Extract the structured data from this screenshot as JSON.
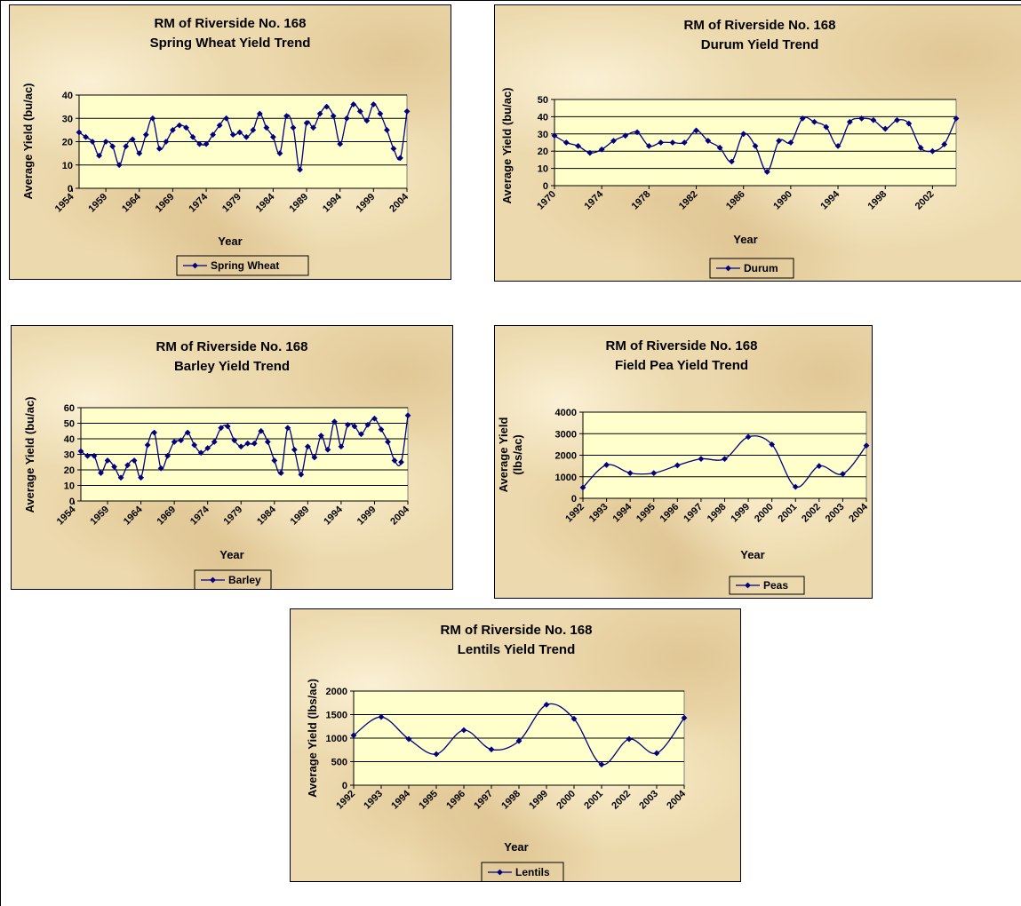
{
  "chart_data": [
    {
      "id": "wheat",
      "type": "line",
      "title": "RM of Riverside No. 168",
      "subtitle": "Spring Wheat Yield Trend",
      "xlabel": "Year",
      "ylabel": "Average Yield  (bu/ac)",
      "ylabel_lines": [
        "Average Yield  (bu/ac)"
      ],
      "ylim": [
        0,
        40
      ],
      "yticks": [
        0,
        10,
        20,
        30,
        40
      ],
      "xtick_labels": [
        "1954",
        "1959",
        "1964",
        "1969",
        "1974",
        "1979",
        "1984",
        "1989",
        "1994",
        "1999",
        "2004"
      ],
      "x_start": 1955,
      "grid": true,
      "legend_position": "bottom",
      "series": [
        {
          "name": "Spring Wheat",
          "x": [
            1955,
            1956,
            1957,
            1958,
            1959,
            1960,
            1961,
            1962,
            1963,
            1964,
            1965,
            1966,
            1967,
            1968,
            1969,
            1970,
            1971,
            1972,
            1973,
            1974,
            1975,
            1976,
            1977,
            1978,
            1979,
            1980,
            1981,
            1982,
            1983,
            1984,
            1985,
            1986,
            1987,
            1988,
            1989,
            1990,
            1991,
            1992,
            1993,
            1994,
            1995,
            1996,
            1997,
            1998,
            1999,
            2000,
            2001,
            2002,
            2003,
            2004
          ],
          "values": [
            24,
            22,
            20,
            14,
            20,
            18,
            10,
            18,
            21,
            15,
            23,
            30,
            17,
            20,
            25,
            27,
            26,
            22,
            19,
            19,
            23,
            27,
            30,
            23,
            24,
            22,
            25,
            32,
            26,
            22,
            15,
            31,
            26,
            8,
            28,
            26,
            32,
            35,
            31,
            19,
            30,
            36,
            33,
            29,
            36,
            32,
            25,
            17,
            13,
            33
          ]
        }
      ]
    },
    {
      "id": "durum",
      "type": "line",
      "title": "RM of Riverside No. 168",
      "subtitle": "Durum Yield Trend",
      "xlabel": "Year",
      "ylabel": "Average Yield (bu/ac)",
      "ylabel_lines": [
        "Average Yield (bu/ac)"
      ],
      "ylim": [
        0,
        50
      ],
      "yticks": [
        0,
        10,
        20,
        30,
        40,
        50
      ],
      "xtick_labels": [
        "1970",
        "1974",
        "1978",
        "1982",
        "1986",
        "1990",
        "1994",
        "1998",
        "2002"
      ],
      "x_start": 1970,
      "grid": true,
      "legend_position": "bottom",
      "series": [
        {
          "name": "Durum",
          "x": [
            1970,
            1971,
            1972,
            1973,
            1974,
            1975,
            1976,
            1977,
            1978,
            1979,
            1980,
            1981,
            1982,
            1983,
            1984,
            1985,
            1986,
            1987,
            1988,
            1989,
            1990,
            1991,
            1992,
            1993,
            1994,
            1995,
            1996,
            1997,
            1998,
            1999,
            2000,
            2001,
            2002,
            2003,
            2004
          ],
          "values": [
            29,
            25,
            23,
            19,
            21,
            26,
            29,
            31,
            23,
            25,
            25,
            25,
            32,
            26,
            22,
            14,
            30,
            23,
            8,
            26,
            25,
            39,
            37,
            34,
            23,
            37,
            39,
            38,
            33,
            38,
            36,
            22,
            20,
            24,
            39
          ]
        }
      ]
    },
    {
      "id": "barley",
      "type": "line",
      "title": "RM of Riverside No. 168",
      "subtitle": "Barley Yield Trend",
      "xlabel": "Year",
      "ylabel": "Average Yield  (bu/ac)",
      "ylabel_lines": [
        "Average Yield  (bu/ac)"
      ],
      "ylim": [
        0,
        60
      ],
      "yticks": [
        0,
        10,
        20,
        30,
        40,
        50,
        60
      ],
      "xtick_labels": [
        "1954",
        "1959",
        "1964",
        "1969",
        "1974",
        "1979",
        "1984",
        "1989",
        "1994",
        "1999",
        "2004"
      ],
      "x_start": 1955,
      "grid": true,
      "legend_position": "bottom",
      "series": [
        {
          "name": "Barley",
          "x": [
            1955,
            1956,
            1957,
            1958,
            1959,
            1960,
            1961,
            1962,
            1963,
            1964,
            1965,
            1966,
            1967,
            1968,
            1969,
            1970,
            1971,
            1972,
            1973,
            1974,
            1975,
            1976,
            1977,
            1978,
            1979,
            1980,
            1981,
            1982,
            1983,
            1984,
            1985,
            1986,
            1987,
            1988,
            1989,
            1990,
            1991,
            1992,
            1993,
            1994,
            1995,
            1996,
            1997,
            1998,
            1999,
            2000,
            2001,
            2002,
            2003,
            2004
          ],
          "values": [
            32,
            29,
            29,
            18,
            26,
            22,
            15,
            23,
            26,
            15,
            36,
            44,
            21,
            29,
            38,
            39,
            44,
            36,
            31,
            34,
            38,
            47,
            48,
            39,
            35,
            37,
            37,
            45,
            38,
            26,
            18,
            47,
            33,
            17,
            35,
            28,
            42,
            33,
            51,
            35,
            49,
            48,
            43,
            49,
            53,
            46,
            38,
            26,
            25,
            55
          ]
        }
      ]
    },
    {
      "id": "peas",
      "type": "line",
      "title": "RM of Riverside No. 168",
      "subtitle": "Field Pea Yield Trend",
      "xlabel": "Year",
      "ylabel": "Average Yield (lbs/ac)",
      "ylabel_lines": [
        "Average Yield",
        "(lbs/ac)"
      ],
      "ylim": [
        0,
        4000
      ],
      "yticks": [
        0,
        1000,
        2000,
        3000,
        4000
      ],
      "xtick_labels": [
        "1992",
        "1993",
        "1994",
        "1995",
        "1996",
        "1997",
        "1998",
        "1999",
        "2000",
        "2001",
        "2002",
        "2003",
        "2004"
      ],
      "x_start": 1992,
      "grid": true,
      "legend_position": "bottom",
      "series": [
        {
          "name": "Peas",
          "x": [
            1992,
            1993,
            1994,
            1995,
            1996,
            1997,
            1998,
            1999,
            2000,
            2001,
            2002,
            2003,
            2004
          ],
          "values": [
            500,
            1550,
            1170,
            1170,
            1530,
            1830,
            1830,
            2850,
            2500,
            530,
            1500,
            1130,
            2450
          ]
        }
      ]
    },
    {
      "id": "lentils",
      "type": "line",
      "title": "RM of Riverside No. 168",
      "subtitle": "Lentils Yield Trend",
      "xlabel": "Year",
      "ylabel": "Average Yield  (lbs/ac)",
      "ylabel_lines": [
        "Average Yield  (lbs/ac)"
      ],
      "ylim": [
        0,
        2000
      ],
      "yticks": [
        0,
        500,
        1000,
        1500,
        2000
      ],
      "xtick_labels": [
        "1992",
        "1993",
        "1994",
        "1995",
        "1996",
        "1997",
        "1998",
        "1999",
        "2000",
        "2001",
        "2002",
        "2003",
        "2004"
      ],
      "x_start": 1992,
      "grid": true,
      "legend_position": "bottom",
      "series": [
        {
          "name": "Lentils",
          "x": [
            1992,
            1993,
            1994,
            1995,
            1996,
            1997,
            1998,
            1999,
            2000,
            2001,
            2002,
            2003,
            2004
          ],
          "values": [
            1060,
            1450,
            980,
            660,
            1170,
            760,
            940,
            1710,
            1410,
            440,
            980,
            680,
            1430
          ]
        }
      ]
    }
  ],
  "colors": {
    "series_line": "#000080",
    "plot_background": "#ffffcc",
    "panel_background": "#ecd9ad"
  }
}
